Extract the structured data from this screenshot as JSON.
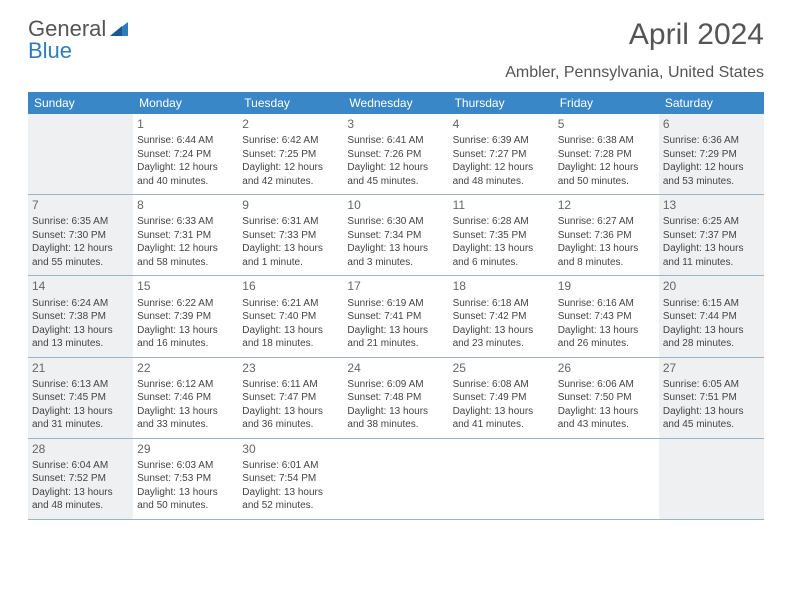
{
  "brand": {
    "part1": "General",
    "part2": "Blue"
  },
  "title": "April 2024",
  "location": "Ambler, Pennsylvania, United States",
  "colors": {
    "header_bg": "#3a87c8",
    "header_text": "#ffffff",
    "shaded_bg": "#eef0f2",
    "border": "#9bb4c9",
    "brand_gray": "#555555",
    "brand_blue": "#2e7cbe",
    "text": "#444444"
  },
  "day_headers": [
    "Sunday",
    "Monday",
    "Tuesday",
    "Wednesday",
    "Thursday",
    "Friday",
    "Saturday"
  ],
  "shaded_columns": [
    0,
    6
  ],
  "weeks": [
    [
      {
        "num": "",
        "lines": []
      },
      {
        "num": "1",
        "lines": [
          "Sunrise: 6:44 AM",
          "Sunset: 7:24 PM",
          "Daylight: 12 hours",
          "and 40 minutes."
        ]
      },
      {
        "num": "2",
        "lines": [
          "Sunrise: 6:42 AM",
          "Sunset: 7:25 PM",
          "Daylight: 12 hours",
          "and 42 minutes."
        ]
      },
      {
        "num": "3",
        "lines": [
          "Sunrise: 6:41 AM",
          "Sunset: 7:26 PM",
          "Daylight: 12 hours",
          "and 45 minutes."
        ]
      },
      {
        "num": "4",
        "lines": [
          "Sunrise: 6:39 AM",
          "Sunset: 7:27 PM",
          "Daylight: 12 hours",
          "and 48 minutes."
        ]
      },
      {
        "num": "5",
        "lines": [
          "Sunrise: 6:38 AM",
          "Sunset: 7:28 PM",
          "Daylight: 12 hours",
          "and 50 minutes."
        ]
      },
      {
        "num": "6",
        "lines": [
          "Sunrise: 6:36 AM",
          "Sunset: 7:29 PM",
          "Daylight: 12 hours",
          "and 53 minutes."
        ]
      }
    ],
    [
      {
        "num": "7",
        "lines": [
          "Sunrise: 6:35 AM",
          "Sunset: 7:30 PM",
          "Daylight: 12 hours",
          "and 55 minutes."
        ]
      },
      {
        "num": "8",
        "lines": [
          "Sunrise: 6:33 AM",
          "Sunset: 7:31 PM",
          "Daylight: 12 hours",
          "and 58 minutes."
        ]
      },
      {
        "num": "9",
        "lines": [
          "Sunrise: 6:31 AM",
          "Sunset: 7:33 PM",
          "Daylight: 13 hours",
          "and 1 minute."
        ]
      },
      {
        "num": "10",
        "lines": [
          "Sunrise: 6:30 AM",
          "Sunset: 7:34 PM",
          "Daylight: 13 hours",
          "and 3 minutes."
        ]
      },
      {
        "num": "11",
        "lines": [
          "Sunrise: 6:28 AM",
          "Sunset: 7:35 PM",
          "Daylight: 13 hours",
          "and 6 minutes."
        ]
      },
      {
        "num": "12",
        "lines": [
          "Sunrise: 6:27 AM",
          "Sunset: 7:36 PM",
          "Daylight: 13 hours",
          "and 8 minutes."
        ]
      },
      {
        "num": "13",
        "lines": [
          "Sunrise: 6:25 AM",
          "Sunset: 7:37 PM",
          "Daylight: 13 hours",
          "and 11 minutes."
        ]
      }
    ],
    [
      {
        "num": "14",
        "lines": [
          "Sunrise: 6:24 AM",
          "Sunset: 7:38 PM",
          "Daylight: 13 hours",
          "and 13 minutes."
        ]
      },
      {
        "num": "15",
        "lines": [
          "Sunrise: 6:22 AM",
          "Sunset: 7:39 PM",
          "Daylight: 13 hours",
          "and 16 minutes."
        ]
      },
      {
        "num": "16",
        "lines": [
          "Sunrise: 6:21 AM",
          "Sunset: 7:40 PM",
          "Daylight: 13 hours",
          "and 18 minutes."
        ]
      },
      {
        "num": "17",
        "lines": [
          "Sunrise: 6:19 AM",
          "Sunset: 7:41 PM",
          "Daylight: 13 hours",
          "and 21 minutes."
        ]
      },
      {
        "num": "18",
        "lines": [
          "Sunrise: 6:18 AM",
          "Sunset: 7:42 PM",
          "Daylight: 13 hours",
          "and 23 minutes."
        ]
      },
      {
        "num": "19",
        "lines": [
          "Sunrise: 6:16 AM",
          "Sunset: 7:43 PM",
          "Daylight: 13 hours",
          "and 26 minutes."
        ]
      },
      {
        "num": "20",
        "lines": [
          "Sunrise: 6:15 AM",
          "Sunset: 7:44 PM",
          "Daylight: 13 hours",
          "and 28 minutes."
        ]
      }
    ],
    [
      {
        "num": "21",
        "lines": [
          "Sunrise: 6:13 AM",
          "Sunset: 7:45 PM",
          "Daylight: 13 hours",
          "and 31 minutes."
        ]
      },
      {
        "num": "22",
        "lines": [
          "Sunrise: 6:12 AM",
          "Sunset: 7:46 PM",
          "Daylight: 13 hours",
          "and 33 minutes."
        ]
      },
      {
        "num": "23",
        "lines": [
          "Sunrise: 6:11 AM",
          "Sunset: 7:47 PM",
          "Daylight: 13 hours",
          "and 36 minutes."
        ]
      },
      {
        "num": "24",
        "lines": [
          "Sunrise: 6:09 AM",
          "Sunset: 7:48 PM",
          "Daylight: 13 hours",
          "and 38 minutes."
        ]
      },
      {
        "num": "25",
        "lines": [
          "Sunrise: 6:08 AM",
          "Sunset: 7:49 PM",
          "Daylight: 13 hours",
          "and 41 minutes."
        ]
      },
      {
        "num": "26",
        "lines": [
          "Sunrise: 6:06 AM",
          "Sunset: 7:50 PM",
          "Daylight: 13 hours",
          "and 43 minutes."
        ]
      },
      {
        "num": "27",
        "lines": [
          "Sunrise: 6:05 AM",
          "Sunset: 7:51 PM",
          "Daylight: 13 hours",
          "and 45 minutes."
        ]
      }
    ],
    [
      {
        "num": "28",
        "lines": [
          "Sunrise: 6:04 AM",
          "Sunset: 7:52 PM",
          "Daylight: 13 hours",
          "and 48 minutes."
        ]
      },
      {
        "num": "29",
        "lines": [
          "Sunrise: 6:03 AM",
          "Sunset: 7:53 PM",
          "Daylight: 13 hours",
          "and 50 minutes."
        ]
      },
      {
        "num": "30",
        "lines": [
          "Sunrise: 6:01 AM",
          "Sunset: 7:54 PM",
          "Daylight: 13 hours",
          "and 52 minutes."
        ]
      },
      {
        "num": "",
        "lines": []
      },
      {
        "num": "",
        "lines": []
      },
      {
        "num": "",
        "lines": []
      },
      {
        "num": "",
        "lines": []
      }
    ]
  ]
}
